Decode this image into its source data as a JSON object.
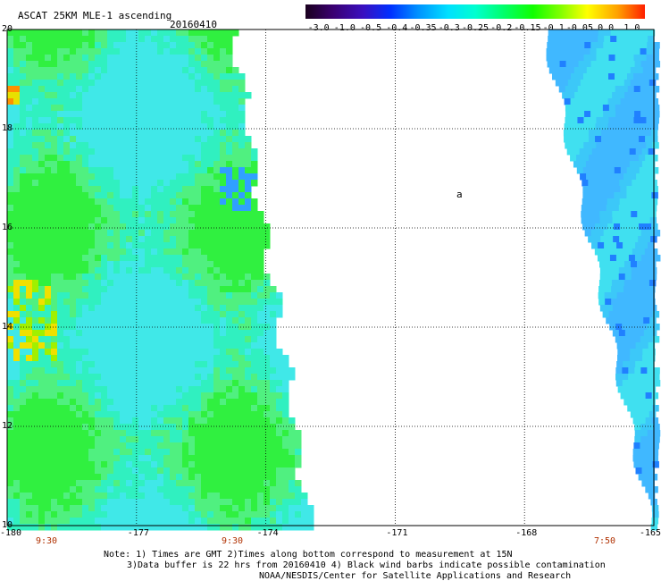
{
  "header": {
    "title": "ASCAT 25KM MLE-1 ascending",
    "date": "20160410"
  },
  "colorbar": {
    "labels": [
      "-3.0",
      "-1.0",
      "-0.5",
      "-0.4",
      "-0.35",
      "-0.3",
      "-0.25",
      "-0.2",
      "-0.15",
      "-0.1",
      "-0.05",
      "0.0",
      "1.0"
    ],
    "colors": [
      "#2a0030",
      "#4a00a0",
      "#2020e0",
      "#0050ff",
      "#00a0ff",
      "#00e8ff",
      "#00ffc0",
      "#00ff60",
      "#20ff00",
      "#a0ff00",
      "#ffff00",
      "#ffa000",
      "#ff3000"
    ]
  },
  "axes": {
    "lat_labels": [
      "20",
      "18",
      "16",
      "14",
      "12",
      "10"
    ],
    "lon_labels": [
      "-180",
      "-177",
      "-174",
      "-171",
      "-168",
      "-165"
    ],
    "lat_range": [
      10,
      20
    ],
    "lon_range": [
      -180,
      -165
    ],
    "grid": true
  },
  "swath_times": [
    "9:30",
    "9:30",
    "7:50"
  ],
  "storm_marker": {
    "label": "a"
  },
  "notes": {
    "line1": "Note: 1) Times are GMT 2)Times along bottom correspond to measurement at 15N",
    "line2": "3)Data buffer is 22 hrs from 20160410 4) Black wind barbs indicate possible contamination",
    "line3": "NOAA/NESDIS/Center for Satellite Applications and Research"
  }
}
